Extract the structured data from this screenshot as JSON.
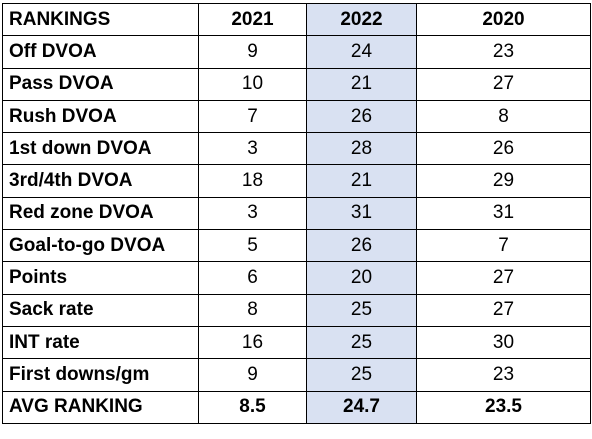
{
  "table": {
    "header": [
      "RANKINGS",
      "2021",
      "2022",
      "2020"
    ],
    "rows": [
      [
        "Off DVOA",
        9,
        24,
        23
      ],
      [
        "Pass DVOA",
        10,
        21,
        27
      ],
      [
        "Rush DVOA",
        7,
        26,
        8
      ],
      [
        "1st down DVOA",
        3,
        28,
        26
      ],
      [
        "3rd/4th DVOA",
        18,
        21,
        29
      ],
      [
        "Red zone DVOA",
        3,
        31,
        31
      ],
      [
        "Goal-to-go DVOA",
        5,
        26,
        7
      ],
      [
        "Points",
        6,
        20,
        27
      ],
      [
        "Sack rate",
        8,
        25,
        27
      ],
      [
        "INT rate",
        16,
        25,
        30
      ],
      [
        "First downs/gm",
        9,
        25,
        23
      ],
      [
        "AVG RANKING",
        8.5,
        24.7,
        23.5
      ]
    ]
  }
}
